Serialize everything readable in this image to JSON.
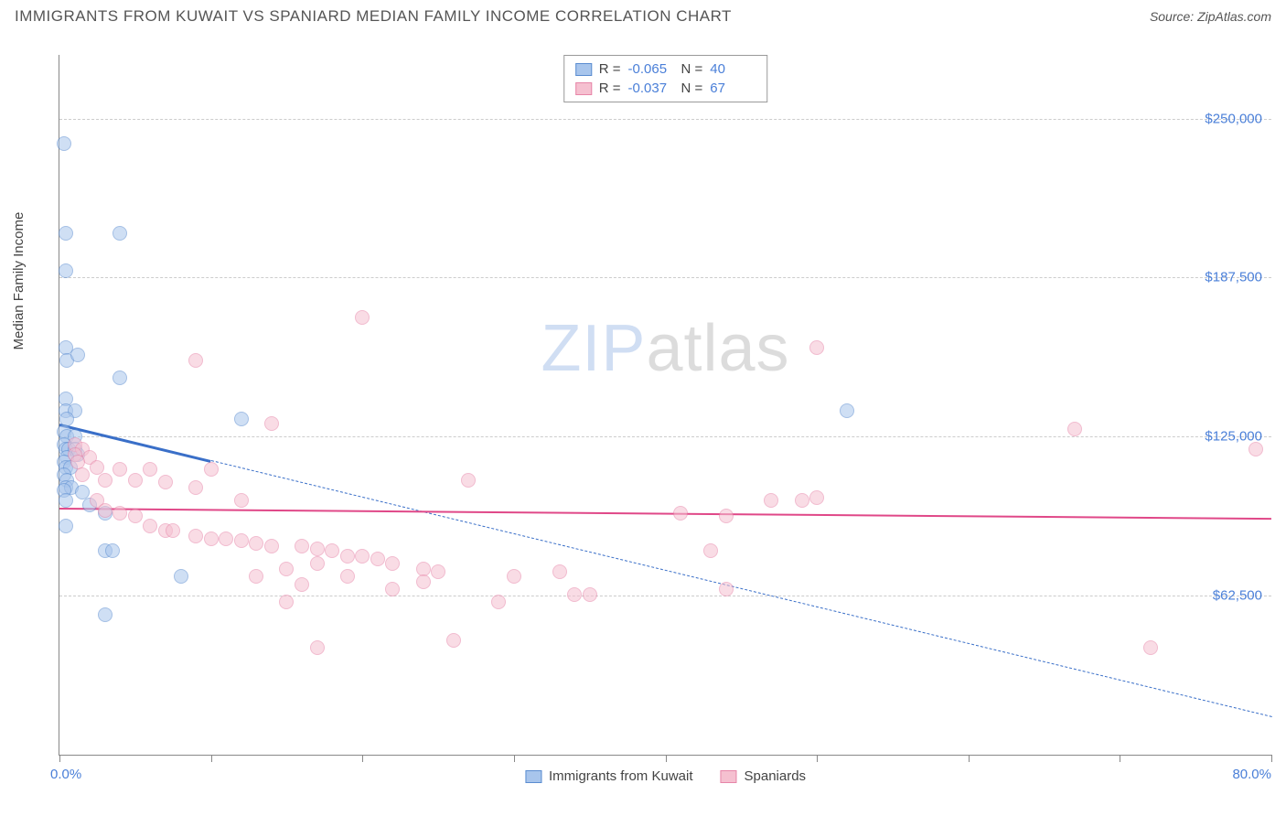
{
  "title": "IMMIGRANTS FROM KUWAIT VS SPANIARD MEDIAN FAMILY INCOME CORRELATION CHART",
  "source": "Source: ZipAtlas.com",
  "ylabel": "Median Family Income",
  "watermark": {
    "part1": "ZIP",
    "part2": "atlas"
  },
  "chart": {
    "type": "scatter",
    "xlim": [
      0,
      80
    ],
    "ylim": [
      0,
      275000
    ],
    "x_label_min": "0.0%",
    "x_label_max": "80.0%",
    "xtick_positions": [
      0,
      10,
      20,
      30,
      40,
      50,
      60,
      70,
      80
    ],
    "yticks": [
      {
        "v": 62500,
        "label": "$62,500"
      },
      {
        "v": 125000,
        "label": "$125,000"
      },
      {
        "v": 187500,
        "label": "$187,500"
      },
      {
        "v": 250000,
        "label": "$250,000"
      }
    ],
    "background_color": "#ffffff",
    "grid_color": "#cccccc",
    "marker_radius": 8,
    "marker_opacity": 0.55,
    "series": [
      {
        "name": "Immigrants from Kuwait",
        "color_fill": "#a8c5ec",
        "color_stroke": "#5a8cd0",
        "r": "-0.065",
        "n": "40",
        "trend": {
          "x1": 0,
          "y1": 130000,
          "x2": 80,
          "y2": 15000,
          "solid_until_x": 10,
          "stroke": "#3a6fc8",
          "width_solid": 3,
          "width_dash": 1.5
        },
        "points": [
          [
            0.3,
            240000
          ],
          [
            0.4,
            205000
          ],
          [
            4,
            205000
          ],
          [
            0.4,
            190000
          ],
          [
            0.4,
            160000
          ],
          [
            0.5,
            155000
          ],
          [
            1.2,
            157000
          ],
          [
            4,
            148000
          ],
          [
            0.4,
            140000
          ],
          [
            0.4,
            135000
          ],
          [
            1,
            135000
          ],
          [
            0.5,
            132000
          ],
          [
            12,
            132000
          ],
          [
            0.3,
            127000
          ],
          [
            0.5,
            125000
          ],
          [
            1,
            125000
          ],
          [
            0.3,
            122000
          ],
          [
            0.4,
            120000
          ],
          [
            0.6,
            120000
          ],
          [
            1,
            120000
          ],
          [
            1.2,
            118000
          ],
          [
            0.5,
            117000
          ],
          [
            0.3,
            115000
          ],
          [
            0.4,
            113000
          ],
          [
            0.7,
            113000
          ],
          [
            0.3,
            110000
          ],
          [
            0.5,
            108000
          ],
          [
            0.4,
            105000
          ],
          [
            0.8,
            105000
          ],
          [
            0.3,
            104000
          ],
          [
            1.5,
            103000
          ],
          [
            0.4,
            100000
          ],
          [
            2,
            98000
          ],
          [
            3,
            95000
          ],
          [
            0.4,
            90000
          ],
          [
            3,
            80000
          ],
          [
            3.5,
            80000
          ],
          [
            8,
            70000
          ],
          [
            3,
            55000
          ],
          [
            52,
            135000
          ]
        ]
      },
      {
        "name": "Spaniards",
        "color_fill": "#f5c0d0",
        "color_stroke": "#e785a8",
        "r": "-0.037",
        "n": "67",
        "trend": {
          "x1": 0,
          "y1": 97000,
          "x2": 80,
          "y2": 93000,
          "solid_until_x": 80,
          "stroke": "#e04888",
          "width_solid": 2.5,
          "width_dash": 1.5
        },
        "points": [
          [
            20,
            172000
          ],
          [
            9,
            155000
          ],
          [
            50,
            160000
          ],
          [
            14,
            130000
          ],
          [
            67,
            128000
          ],
          [
            79,
            120000
          ],
          [
            1,
            122000
          ],
          [
            1.5,
            120000
          ],
          [
            1,
            118000
          ],
          [
            2,
            117000
          ],
          [
            1.2,
            115000
          ],
          [
            2.5,
            113000
          ],
          [
            4,
            112000
          ],
          [
            6,
            112000
          ],
          [
            10,
            112000
          ],
          [
            3,
            108000
          ],
          [
            5,
            108000
          ],
          [
            7,
            107000
          ],
          [
            1.5,
            110000
          ],
          [
            27,
            108000
          ],
          [
            9,
            105000
          ],
          [
            12,
            100000
          ],
          [
            2.5,
            100000
          ],
          [
            47,
            100000
          ],
          [
            49,
            100000
          ],
          [
            50,
            101000
          ],
          [
            3,
            96000
          ],
          [
            4,
            95000
          ],
          [
            5,
            94000
          ],
          [
            41,
            95000
          ],
          [
            44,
            94000
          ],
          [
            6,
            90000
          ],
          [
            7,
            88000
          ],
          [
            7.5,
            88000
          ],
          [
            9,
            86000
          ],
          [
            10,
            85000
          ],
          [
            11,
            85000
          ],
          [
            12,
            84000
          ],
          [
            13,
            83000
          ],
          [
            14,
            82000
          ],
          [
            16,
            82000
          ],
          [
            17,
            81000
          ],
          [
            18,
            80000
          ],
          [
            19,
            78000
          ],
          [
            20,
            78000
          ],
          [
            21,
            77000
          ],
          [
            22,
            75000
          ],
          [
            17,
            75000
          ],
          [
            24,
            73000
          ],
          [
            25,
            72000
          ],
          [
            15,
            73000
          ],
          [
            43,
            80000
          ],
          [
            13,
            70000
          ],
          [
            19,
            70000
          ],
          [
            30,
            70000
          ],
          [
            33,
            72000
          ],
          [
            16,
            67000
          ],
          [
            22,
            65000
          ],
          [
            24,
            68000
          ],
          [
            34,
            63000
          ],
          [
            35,
            63000
          ],
          [
            44,
            65000
          ],
          [
            15,
            60000
          ],
          [
            29,
            60000
          ],
          [
            17,
            42000
          ],
          [
            72,
            42000
          ],
          [
            26,
            45000
          ]
        ]
      }
    ]
  },
  "legend_bottom": [
    {
      "label": "Immigrants from Kuwait",
      "fill": "#a8c5ec",
      "stroke": "#5a8cd0"
    },
    {
      "label": "Spaniards",
      "fill": "#f5c0d0",
      "stroke": "#e785a8"
    }
  ]
}
